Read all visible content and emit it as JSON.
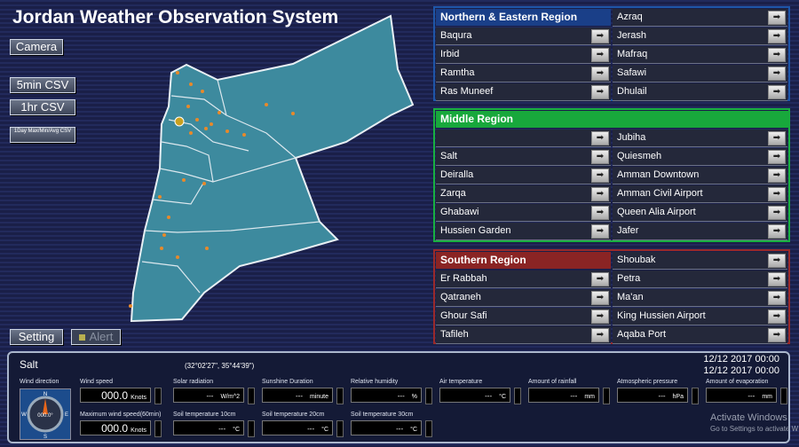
{
  "header": {
    "title": "Jordan Weather Observation System"
  },
  "buttons": {
    "camera": "Camera",
    "csv_5min": "5min CSV",
    "csv_1hr": "1hr CSV",
    "csv_1day": "1Day Max/Min/Avg CSV",
    "setting": "Setting",
    "alert": "Alert"
  },
  "regions": [
    {
      "title": "Northern & Eastern Region",
      "header_right": "Azraq",
      "left": [
        "Baqura",
        "Irbid",
        "Ramtha",
        "Ras Muneef"
      ],
      "right": [
        "Jerash",
        "Mafraq",
        "Safawi",
        "Dhulail"
      ]
    },
    {
      "title": "Middle Region",
      "left": [
        "Salt",
        "Deiralla",
        "Zarqa",
        "Ghabawi",
        "Hussien Garden"
      ],
      "right": [
        "Jubiha",
        "Quiesmeh",
        "Amman Downtown",
        "Amman Civil Airport",
        "Queen Alia Airport",
        "Jafer"
      ]
    },
    {
      "title": "Southern Region",
      "header_right": "Shoubak",
      "left": [
        "Er Rabbah",
        "Qatraneh",
        "Ghour Safi",
        "Tafileh"
      ],
      "right": [
        "Petra",
        "Ma'an",
        "King Hussien Airport",
        "Aqaba Port"
      ]
    }
  ],
  "panel": {
    "station": "Salt",
    "coords": "(32°02'27\", 35°44'39\")",
    "datetimes": [
      "12/12 2017 00:00",
      "12/12 2017 00:00"
    ],
    "wind_direction": {
      "label": "Wind direction",
      "north": "N",
      "east": "E",
      "south": "S",
      "west": "W",
      "value": "000.0°"
    },
    "fields": [
      {
        "label": "Wind speed",
        "value": "000.0",
        "unit": "Knots"
      },
      {
        "label": "Solar radiation",
        "value": "---",
        "unit": "W/m^2"
      },
      {
        "label": "Sunshine Duration",
        "value": "---",
        "unit": "minute"
      },
      {
        "label": "Relative humidity",
        "value": "---",
        "unit": "%"
      },
      {
        "label": "Air temperature",
        "value": "---",
        "unit": "°C"
      },
      {
        "label": "Amount of rainfall",
        "value": "---",
        "unit": "mm"
      },
      {
        "label": "Atmospheric pressure",
        "value": "---",
        "unit": "hPa"
      },
      {
        "label": "Amount of evaporation",
        "value": "---",
        "unit": "mm"
      },
      {
        "label": "Maximum wind speed(60min)",
        "value": "000.0",
        "unit": "Knots"
      },
      {
        "label": "Soil temperature 10cm",
        "value": "---",
        "unit": "°C"
      },
      {
        "label": "Soil temperature 20cm",
        "value": "---",
        "unit": "°C"
      },
      {
        "label": "Soil temperature 30cm",
        "value": "---",
        "unit": "°C"
      }
    ]
  },
  "watermark": {
    "title": "Activate Windows",
    "subtitle": "Go to Settings to activate W"
  }
}
